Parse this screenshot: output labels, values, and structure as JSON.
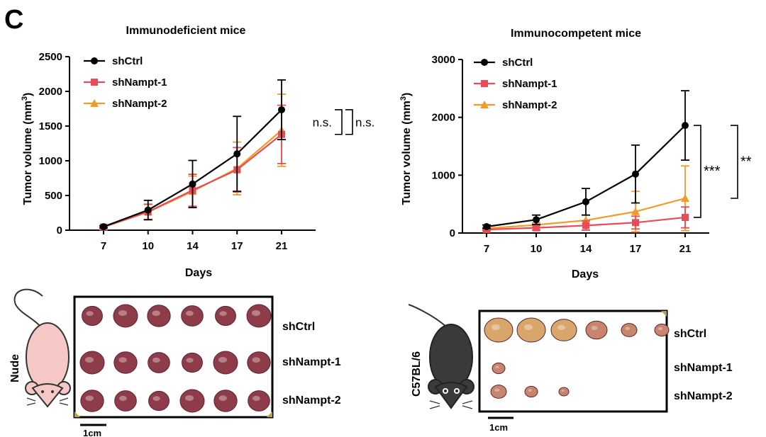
{
  "panel_label": "C",
  "chart_data": [
    {
      "type": "line",
      "title": "Immunodeficient mice",
      "xlabel": "Days",
      "ylabel": "Tumor volume (mm",
      "ylabel_sup": "3",
      "ylabel_close": ")",
      "categories": [
        7,
        10,
        14,
        17,
        21
      ],
      "x_tick_labels": [
        "7",
        "10",
        "14",
        "17",
        "21"
      ],
      "ylim": [
        0,
        2500
      ],
      "yticks": [
        0,
        500,
        1000,
        1500,
        2000,
        2500
      ],
      "ytick_labels": [
        "0",
        "500",
        "1000",
        "1500",
        "2000",
        "2500"
      ],
      "series": [
        {
          "name": "shCtrl",
          "color": "#000000",
          "marker": "circle",
          "values": [
            50,
            290,
            665,
            1100,
            1735
          ],
          "errors": [
            15,
            140,
            340,
            540,
            430
          ]
        },
        {
          "name": "shNampt-1",
          "color": "#e84c57",
          "marker": "square",
          "values": [
            45,
            265,
            575,
            870,
            1380
          ],
          "errors": [
            15,
            110,
            230,
            320,
            420
          ]
        },
        {
          "name": "shNampt-2",
          "color": "#f39a25",
          "marker": "triangle",
          "values": [
            45,
            260,
            560,
            890,
            1440
          ],
          "errors": [
            15,
            110,
            220,
            380,
            520
          ]
        }
      ],
      "annotations": [
        "n.s.",
        "n.s."
      ]
    },
    {
      "type": "line",
      "title": "Immunocompetent mice",
      "xlabel": "Days",
      "ylabel": "Tumor volume (mm",
      "ylabel_sup": "3",
      "ylabel_close": ")",
      "categories": [
        7,
        10,
        14,
        17,
        21
      ],
      "x_tick_labels": [
        "7",
        "10",
        "14",
        "17",
        "21"
      ],
      "ylim": [
        0,
        3000
      ],
      "yticks": [
        0,
        1000,
        2000,
        3000
      ],
      "ytick_labels": [
        "0",
        "1000",
        "2000",
        "3000"
      ],
      "series": [
        {
          "name": "shCtrl",
          "color": "#000000",
          "marker": "circle",
          "values": [
            110,
            230,
            540,
            1020,
            1860
          ],
          "errors": [
            30,
            80,
            230,
            500,
            600
          ]
        },
        {
          "name": "shNampt-1",
          "color": "#e84c57",
          "marker": "square",
          "values": [
            60,
            90,
            130,
            180,
            270
          ],
          "errors": [
            20,
            40,
            80,
            110,
            180
          ]
        },
        {
          "name": "shNampt-2",
          "color": "#f39a25",
          "marker": "triangle",
          "values": [
            80,
            140,
            220,
            370,
            600
          ],
          "errors": [
            20,
            40,
            90,
            350,
            560
          ]
        }
      ],
      "annotations": [
        "***",
        "**"
      ]
    }
  ],
  "photos": [
    {
      "mouse_label": "Nude",
      "mouse_color": "#f6c8c5",
      "row_labels": [
        "shCtrl",
        "shNampt-1",
        "shNampt-2"
      ],
      "tumor_counts": [
        6,
        6,
        6
      ],
      "tumor_color": "#8e3b4a",
      "scale_label": "1cm"
    },
    {
      "mouse_label": "C57BL/6",
      "mouse_color": "#3a3a3a",
      "row_labels": [
        "shCtrl",
        "shNampt-1",
        "shNampt-2"
      ],
      "tumor_counts": [
        6,
        1,
        3
      ],
      "tumor_color": "#c7856e",
      "scale_label": "1cm"
    }
  ]
}
